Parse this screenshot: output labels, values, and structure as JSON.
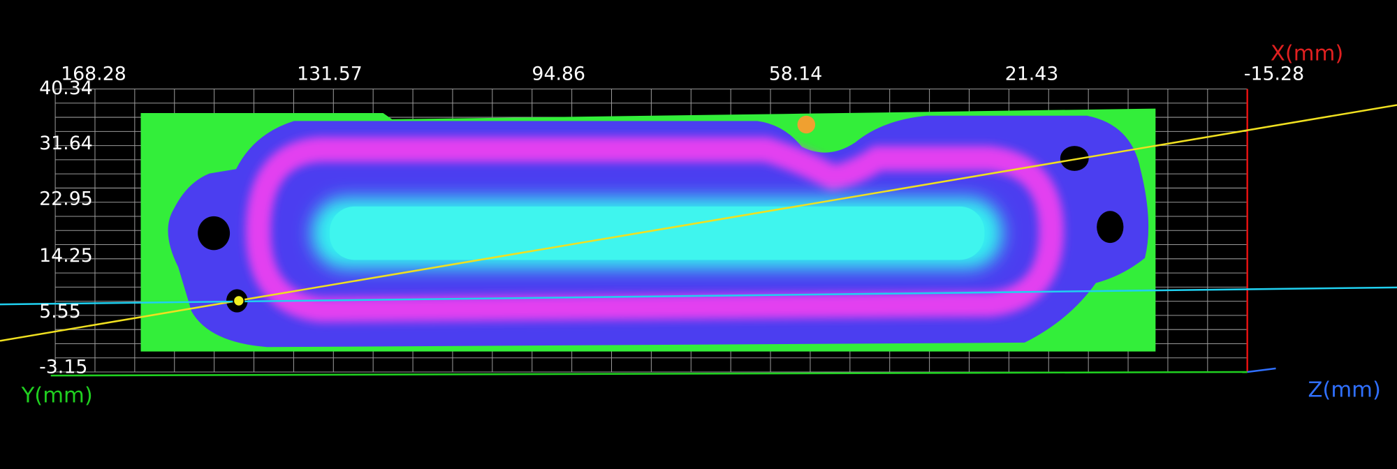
{
  "viewer": {
    "x_axis": {
      "label": "X(mm)",
      "ticks": [
        168.28,
        131.57,
        94.86,
        58.14,
        21.43,
        -15.28
      ]
    },
    "y_axis": {
      "label": "Y(mm)",
      "ticks": [
        40.34,
        31.64,
        22.95,
        14.25,
        5.55,
        -3.15
      ]
    },
    "z_axis": {
      "label": "Z(mm)"
    }
  }
}
